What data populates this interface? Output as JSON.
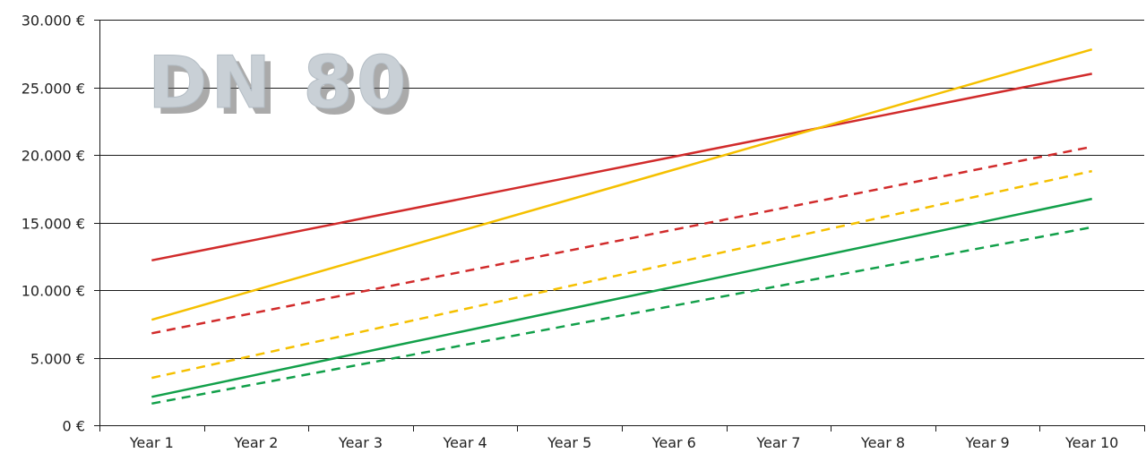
{
  "chart_data": {
    "type": "line",
    "title": "DN 80",
    "categories": [
      "Year 1",
      "Year 2",
      "Year 3",
      "Year 4",
      "Year 5",
      "Year 6",
      "Year 7",
      "Year 8",
      "Year 9",
      "Year 10"
    ],
    "ylim": [
      0,
      30000
    ],
    "y_ticks": [
      0,
      5000,
      10000,
      15000,
      20000,
      25000,
      30000
    ],
    "y_tick_labels": [
      "0 €",
      "5.000 €",
      "10.000 €",
      "15.000 €",
      "20.000 €",
      "25.000 €",
      "30.000 €"
    ],
    "grid": true,
    "legend": "none",
    "series": [
      {
        "color": "#d12b2b",
        "style": "solid",
        "values": [
          12200,
          13730,
          15270,
          16800,
          18330,
          19870,
          21400,
          22930,
          24470,
          26000
        ]
      },
      {
        "color": "#f5c000",
        "style": "solid",
        "values": [
          7800,
          10020,
          12240,
          14470,
          16690,
          18910,
          21130,
          23360,
          25580,
          27800
        ]
      },
      {
        "color": "#d12b2b",
        "style": "dashed",
        "values": [
          6800,
          8340,
          9870,
          11400,
          12930,
          14470,
          16000,
          17530,
          19070,
          20600
        ]
      },
      {
        "color": "#f5c000",
        "style": "dashed",
        "values": [
          3500,
          5200,
          6900,
          8600,
          10300,
          12000,
          13700,
          15400,
          17100,
          18800
        ]
      },
      {
        "color": "#12a04a",
        "style": "solid",
        "values": [
          2100,
          3730,
          5360,
          6980,
          8610,
          10240,
          11870,
          13490,
          15120,
          16750
        ]
      },
      {
        "color": "#12a04a",
        "style": "dashed",
        "values": [
          1600,
          3050,
          4500,
          5950,
          7400,
          8850,
          10300,
          11750,
          13200,
          14650
        ]
      }
    ]
  }
}
